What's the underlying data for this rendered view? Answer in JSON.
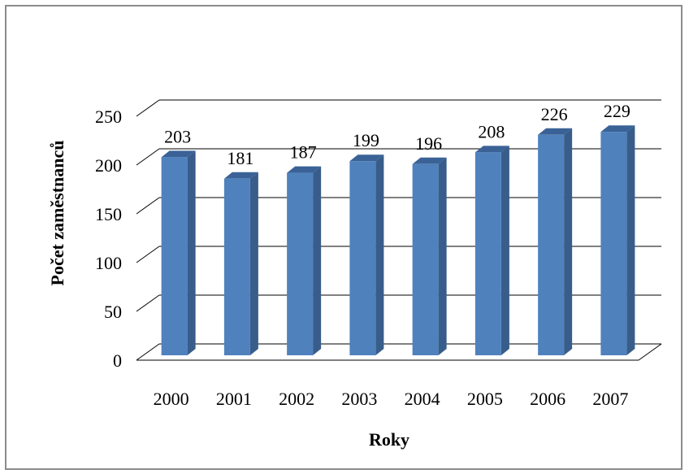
{
  "chart_data": {
    "type": "bar",
    "categories": [
      "2000",
      "2001",
      "2002",
      "2003",
      "2004",
      "2005",
      "2006",
      "2007"
    ],
    "values": [
      203,
      181,
      187,
      199,
      196,
      208,
      226,
      229
    ],
    "data_labels": [
      "203",
      "181",
      "187",
      "199",
      "196",
      "208",
      "226",
      "229"
    ],
    "title": "",
    "xlabel": "Roky",
    "ylabel": "Počet zaměstnanců",
    "ylim": [
      0,
      250
    ],
    "yticks": [
      "0",
      "50",
      "100",
      "150",
      "200",
      "250"
    ],
    "grid": true,
    "legend": "none",
    "style": "3d-column",
    "colors": {
      "bar_front": "#4f81bd",
      "bar_side": "#385d8a",
      "bar_top": "#3a6296",
      "gridline": "#000000",
      "frame": "#8c8c8c"
    }
  }
}
